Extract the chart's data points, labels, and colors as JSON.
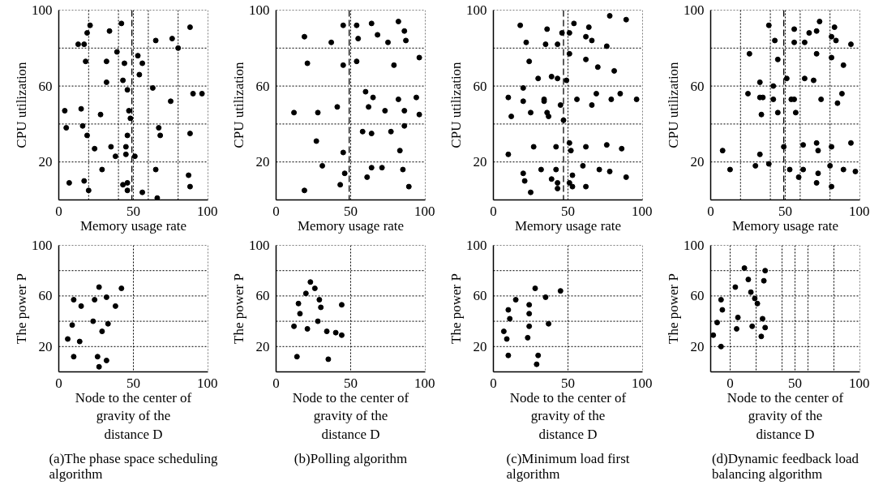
{
  "chart_data": [
    {
      "type": "scatter",
      "xlabel": "Memory usage rate",
      "ylabel": "CPU utilization",
      "marker": "circle",
      "grid": true,
      "xlim": [
        0,
        100
      ],
      "ylim": [
        0,
        100
      ],
      "xticks": [
        0,
        50,
        100
      ],
      "yticks": [
        20,
        60,
        100
      ],
      "ref_lines": [
        {
          "axis": "x",
          "value": 49,
          "line_style": "dashed",
          "color": "#000000"
        },
        {
          "axis": "y",
          "value": 40,
          "line_style": "dotted",
          "color": "#000000"
        },
        {
          "axis": "y",
          "value": 80,
          "line_style": "dotted",
          "color": "#000000"
        },
        {
          "axis": "x",
          "value": 20,
          "line_style": "dotted",
          "color": "#000000"
        },
        {
          "axis": "x",
          "value": 40,
          "line_style": "dotted",
          "color": "#000000"
        },
        {
          "axis": "x",
          "value": 60,
          "line_style": "dotted",
          "color": "#000000"
        },
        {
          "axis": "x",
          "value": 80,
          "line_style": "dotted",
          "color": "#000000"
        }
      ],
      "series": [
        {
          "color": "#000000",
          "x": [
            21,
            19,
            13,
            17,
            34,
            42,
            88,
            65,
            76,
            80,
            18,
            32,
            39,
            44,
            53,
            56,
            54,
            43,
            32,
            46,
            63,
            90,
            96,
            75,
            4,
            15,
            28,
            47,
            48,
            5,
            16,
            67,
            68,
            88,
            19,
            46,
            24,
            35,
            45,
            38,
            45,
            51,
            29,
            65,
            7,
            17,
            87,
            88,
            20,
            43,
            46,
            46,
            56,
            66
          ],
          "values": [
            92,
            88,
            82,
            82,
            89,
            93,
            91,
            84,
            85,
            80,
            73,
            73,
            78,
            72,
            76,
            72,
            66,
            63,
            62,
            58,
            59,
            56,
            56,
            52,
            47,
            48,
            45,
            47,
            43,
            38,
            39,
            38,
            34,
            35,
            34,
            34,
            27,
            28,
            28,
            23,
            24,
            23,
            16,
            16,
            9,
            10,
            13,
            7,
            5,
            8,
            9,
            5,
            4,
            1
          ]
        }
      ]
    },
    {
      "type": "scatter",
      "xlabel": "Memory usage rate",
      "ylabel": "CPU utilization",
      "marker": "circle",
      "grid": true,
      "xlim": [
        0,
        100
      ],
      "ylim": [
        0,
        100
      ],
      "xticks": [
        0,
        50,
        100
      ],
      "yticks": [
        20,
        60,
        100
      ],
      "ref_lines": [
        {
          "axis": "x",
          "value": 49,
          "line_style": "dashed",
          "color": "#000000"
        },
        {
          "axis": "y",
          "value": 40,
          "line_style": "dotted",
          "color": "#000000"
        },
        {
          "axis": "y",
          "value": 80,
          "line_style": "dotted",
          "color": "#000000"
        }
      ],
      "series": [
        {
          "color": "#000000",
          "x": [
            45,
            54,
            64,
            82,
            86,
            87,
            68,
            75,
            55,
            19,
            37,
            21,
            45,
            54,
            79,
            96,
            60,
            65,
            62,
            73,
            82,
            94,
            86,
            96,
            12,
            28,
            41,
            58,
            64,
            77,
            86,
            27,
            45,
            83,
            31,
            64,
            71,
            85,
            61,
            46,
            43,
            19,
            89
          ],
          "values": [
            92,
            92,
            93,
            94,
            89,
            84,
            87,
            83,
            85,
            86,
            83,
            72,
            71,
            73,
            71,
            75,
            57,
            54,
            49,
            47,
            53,
            54,
            47,
            45,
            46,
            46,
            49,
            36,
            35,
            36,
            39,
            31,
            25,
            26,
            18,
            17,
            17,
            16,
            12,
            14,
            8,
            5,
            7
          ]
        }
      ]
    },
    {
      "type": "scatter",
      "xlabel": "Memory usage rate",
      "ylabel": "CPU utilization",
      "marker": "circle",
      "grid": true,
      "xlim": [
        0,
        100
      ],
      "ylim": [
        0,
        100
      ],
      "xticks": [
        0,
        50,
        100
      ],
      "yticks": [
        20,
        60,
        100
      ],
      "ref_lines": [
        {
          "axis": "x",
          "value": 47,
          "line_style": "dashed",
          "color": "#000000"
        },
        {
          "axis": "y",
          "value": 40,
          "line_style": "dotted",
          "color": "#000000"
        },
        {
          "axis": "y",
          "value": 80,
          "line_style": "dotted",
          "color": "#000000"
        }
      ],
      "series": [
        {
          "color": "#000000",
          "x": [
            18,
            36,
            46,
            51,
            54,
            64,
            78,
            89,
            22,
            35,
            43,
            62,
            66,
            76,
            51,
            24,
            62,
            70,
            81,
            30,
            39,
            43,
            49,
            20,
            10,
            20,
            34,
            34,
            45,
            56,
            69,
            79,
            85,
            96,
            66,
            12,
            25,
            36,
            37,
            47,
            10,
            27,
            42,
            51,
            52,
            62,
            76,
            86,
            20,
            32,
            42,
            60,
            71,
            78,
            89,
            21,
            25,
            39,
            43,
            43,
            51,
            53,
            53,
            62
          ],
          "values": [
            92,
            90,
            88,
            88,
            93,
            91,
            97,
            95,
            83,
            82,
            82,
            86,
            84,
            81,
            77,
            73,
            74,
            70,
            68,
            64,
            65,
            64,
            63,
            59,
            54,
            52,
            52,
            53,
            50,
            53,
            56,
            53,
            56,
            53,
            50,
            44,
            46,
            46,
            44,
            42,
            24,
            28,
            28,
            30,
            26,
            28,
            29,
            27,
            14,
            16,
            16,
            18,
            16,
            15,
            12,
            10,
            4,
            11,
            9,
            6,
            9,
            13,
            7,
            7
          ]
        }
      ]
    },
    {
      "type": "scatter",
      "xlabel": "Memory usage rate",
      "ylabel": "CPU utilization",
      "marker": "circle",
      "grid": true,
      "xlim": [
        0,
        100
      ],
      "ylim": [
        0,
        100
      ],
      "xticks": [
        0,
        50,
        100
      ],
      "yticks": [
        20,
        60,
        100
      ],
      "ref_lines": [
        {
          "axis": "x",
          "value": 49,
          "line_style": "dashed",
          "color": "#000000"
        },
        {
          "axis": "y",
          "value": 40,
          "line_style": "dotted",
          "color": "#000000"
        },
        {
          "axis": "y",
          "value": 80,
          "line_style": "dotted",
          "color": "#000000"
        },
        {
          "axis": "x",
          "value": 20,
          "line_style": "dotted",
          "color": "#000000"
        },
        {
          "axis": "x",
          "value": 40,
          "line_style": "dotted",
          "color": "#000000"
        },
        {
          "axis": "x",
          "value": 60,
          "line_style": "dotted",
          "color": "#000000"
        },
        {
          "axis": "x",
          "value": 80,
          "line_style": "dotted",
          "color": "#000000"
        }
      ],
      "series": [
        {
          "color": "#000000",
          "x": [
            39,
            56,
            73,
            83,
            66,
            71,
            81,
            84,
            43,
            56,
            63,
            94,
            26,
            71,
            45,
            81,
            89,
            51,
            63,
            69,
            33,
            42,
            25,
            33,
            35,
            42,
            54,
            56,
            74,
            88,
            85,
            34,
            45,
            57,
            8,
            13,
            33,
            30,
            39,
            49,
            53,
            59,
            62,
            62,
            71,
            72,
            72,
            71,
            81,
            80,
            81,
            89,
            94,
            97
          ],
          "values": [
            92,
            90,
            94,
            91,
            88,
            89,
            86,
            84,
            84,
            83,
            83,
            82,
            77,
            77,
            74,
            75,
            71,
            64,
            64,
            63,
            62,
            60,
            56,
            54,
            54,
            53,
            53,
            53,
            53,
            56,
            51,
            45,
            46,
            46,
            26,
            16,
            24,
            18,
            19,
            28,
            16,
            12,
            16,
            29,
            30,
            26,
            14,
            9,
            28,
            18,
            7,
            16,
            30,
            15
          ]
        }
      ]
    },
    {
      "type": "scatter",
      "xlabel": "Node to the center of gravity of the distance D",
      "ylabel": "The power P",
      "annotations": [
        "(a)The phase space scheduling algorithm"
      ],
      "marker": "circle",
      "grid": true,
      "xlim": [
        0,
        100
      ],
      "ylim": [
        0,
        100
      ],
      "xticks": [
        0,
        50,
        100
      ],
      "yticks": [
        20,
        60,
        100
      ],
      "ref_lines": [
        {
          "axis": "y",
          "value": 40,
          "line_style": "dotted",
          "color": "#000000"
        },
        {
          "axis": "y",
          "value": 80,
          "line_style": "dotted",
          "color": "#000000"
        }
      ],
      "series": [
        {
          "color": "#000000",
          "x": [
            27,
            42,
            10,
            24,
            32,
            15,
            38,
            9,
            23,
            33,
            29,
            6,
            14,
            10,
            26,
            32,
            27
          ],
          "values": [
            67,
            66,
            57,
            57,
            59,
            52,
            52,
            37,
            40,
            38,
            32,
            26,
            24,
            12,
            12,
            9,
            4
          ]
        }
      ]
    },
    {
      "type": "scatter",
      "xlabel": "Node to the center of gravity of the distance D",
      "ylabel": "The power P",
      "annotations": [
        "(b)Polling algorithm"
      ],
      "marker": "circle",
      "grid": true,
      "xlim": [
        0,
        100
      ],
      "ylim": [
        0,
        100
      ],
      "xticks": [
        0,
        50,
        100
      ],
      "yticks": [
        20,
        60,
        100
      ],
      "ref_lines": [
        {
          "axis": "y",
          "value": 40,
          "line_style": "dotted",
          "color": "#000000"
        },
        {
          "axis": "y",
          "value": 80,
          "line_style": "dotted",
          "color": "#000000"
        }
      ],
      "series": [
        {
          "color": "#000000",
          "x": [
            23,
            26,
            20,
            29,
            15,
            44,
            30,
            16,
            28,
            12,
            21,
            34,
            40,
            44,
            14,
            35
          ],
          "values": [
            71,
            66,
            62,
            57,
            54,
            53,
            51,
            46,
            40,
            36,
            34,
            32,
            31,
            29,
            12,
            10
          ]
        }
      ]
    },
    {
      "type": "scatter",
      "xlabel": "Node to the center of gravity of the distance D",
      "ylabel": "The power P",
      "annotations": [
        "(c)Minimum load first algorithm"
      ],
      "marker": "circle",
      "grid": true,
      "xlim": [
        0,
        100
      ],
      "ylim": [
        0,
        100
      ],
      "xticks": [
        0,
        50,
        100
      ],
      "yticks": [
        20,
        60,
        100
      ],
      "ref_lines": [
        {
          "axis": "y",
          "value": 40,
          "line_style": "dotted",
          "color": "#000000"
        },
        {
          "axis": "y",
          "value": 80,
          "line_style": "dotted",
          "color": "#000000"
        }
      ],
      "series": [
        {
          "color": "#000000",
          "x": [
            28,
            45,
            15,
            35,
            24,
            10,
            24,
            11,
            37,
            24,
            7,
            9,
            23,
            10,
            30,
            29
          ],
          "values": [
            66,
            64,
            57,
            59,
            53,
            49,
            46,
            42,
            38,
            36,
            32,
            26,
            27,
            13,
            13,
            6
          ]
        }
      ]
    },
    {
      "type": "scatter",
      "xlabel": "Node to the center of gravity of the distance D",
      "ylabel": "The power P",
      "annotations": [
        "(d)Dynamic feedback load balancing algorithm"
      ],
      "marker": "circle",
      "grid": true,
      "xlim": [
        -15,
        100
      ],
      "ylim": [
        0,
        100
      ],
      "xticks": [
        0,
        50,
        100
      ],
      "yticks": [
        20,
        60,
        100
      ],
      "ref_lines": [
        {
          "axis": "y",
          "value": 40,
          "line_style": "dotted",
          "color": "#000000"
        },
        {
          "axis": "y",
          "value": 80,
          "line_style": "dotted",
          "color": "#000000"
        },
        {
          "axis": "x",
          "value": 20,
          "line_style": "dotted",
          "color": "#000000"
        },
        {
          "axis": "x",
          "value": 40,
          "line_style": "dotted",
          "color": "#000000"
        },
        {
          "axis": "x",
          "value": 60,
          "line_style": "dotted",
          "color": "#000000"
        },
        {
          "axis": "x",
          "value": 80,
          "line_style": "dotted",
          "color": "#000000"
        }
      ],
      "series": [
        {
          "color": "#000000",
          "x": [
            11,
            27,
            14,
            26,
            4,
            16,
            19,
            21,
            -7,
            -6,
            6,
            -10,
            5,
            17,
            25,
            27,
            24,
            -13,
            -7
          ],
          "values": [
            82,
            80,
            73,
            72,
            67,
            63,
            58,
            54,
            57,
            49,
            43,
            39,
            34,
            36,
            42,
            35,
            28,
            29,
            20
          ]
        }
      ]
    }
  ]
}
